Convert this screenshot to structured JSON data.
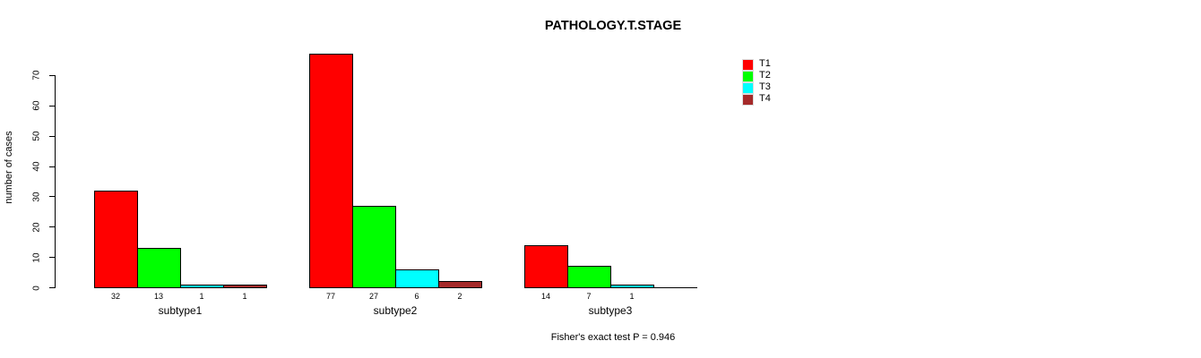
{
  "chart_data": {
    "type": "bar",
    "title": "PATHOLOGY.T.STAGE",
    "ylabel": "number of cases",
    "xlabel": "",
    "categories": [
      "subtype1",
      "subtype2",
      "subtype3"
    ],
    "series": [
      {
        "name": "T1",
        "color": "#ff0000",
        "values": [
          32,
          77,
          14
        ]
      },
      {
        "name": "T2",
        "color": "#00ff00",
        "values": [
          13,
          27,
          7
        ]
      },
      {
        "name": "T3",
        "color": "#00ffff",
        "values": [
          1,
          6,
          1
        ]
      },
      {
        "name": "T4",
        "color": "#a52a2a",
        "values": [
          1,
          2,
          0
        ]
      }
    ],
    "yticks": [
      0,
      10,
      20,
      30,
      40,
      50,
      60,
      70
    ],
    "ylim": [
      0,
      77
    ],
    "grid": false,
    "bar_value_labels_shown": true,
    "legend": {
      "position": "right-outside",
      "entries": [
        "T1",
        "T2",
        "T3",
        "T4"
      ]
    },
    "annotation": "Fisher's exact test P = 0.946",
    "background": "#ffffff",
    "text_color": "#000000"
  }
}
